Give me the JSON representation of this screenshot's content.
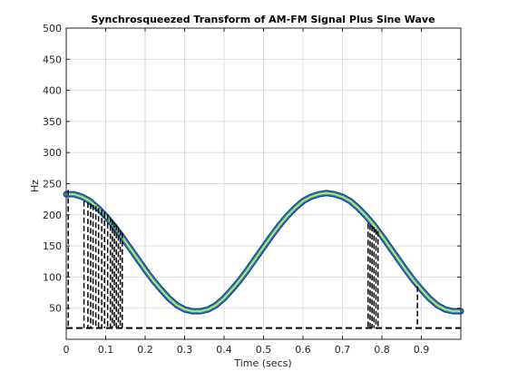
{
  "chart_data": {
    "type": "line",
    "title": "Synchrosqueezed Transform of AM-FM Signal Plus Sine Wave",
    "xlabel": "Time (secs)",
    "ylabel": "Hz",
    "xlim": [
      0,
      1
    ],
    "ylim": [
      0,
      500
    ],
    "x_ticks": [
      0,
      0.1,
      0.2,
      0.3,
      0.4,
      0.5,
      0.6,
      0.7,
      0.8,
      0.9
    ],
    "x_tick_labels": [
      "0",
      "0.1",
      "0.2",
      "0.3",
      "0.4",
      "0.5",
      "0.6",
      "0.7",
      "0.8",
      "0.9"
    ],
    "y_ticks": [
      50,
      100,
      150,
      200,
      250,
      300,
      350,
      400,
      450,
      500
    ],
    "y_tick_labels": [
      "50",
      "100",
      "150",
      "200",
      "250",
      "300",
      "350",
      "400",
      "450",
      "500"
    ],
    "grid": true,
    "series": [
      {
        "color": "#26a69a",
        "x": [
          0.0,
          0.02,
          0.04,
          0.06,
          0.08,
          0.1,
          0.12,
          0.14,
          0.16,
          0.18,
          0.2,
          0.22,
          0.24,
          0.26,
          0.28,
          0.3,
          0.32,
          0.34,
          0.36,
          0.38,
          0.4,
          0.42,
          0.44,
          0.46,
          0.48,
          0.5,
          0.52,
          0.54,
          0.56,
          0.58,
          0.6,
          0.62,
          0.64,
          0.66,
          0.68,
          0.7,
          0.72,
          0.74,
          0.76,
          0.78,
          0.8,
          0.82,
          0.84,
          0.86,
          0.88,
          0.9,
          0.92,
          0.94,
          0.96,
          0.98,
          1.0
        ],
        "y": [
          233,
          233,
          229,
          222,
          211,
          198,
          183,
          166,
          148,
          130,
          112,
          95,
          80,
          66,
          55,
          48,
          45,
          45,
          48,
          55,
          66,
          80,
          95,
          112,
          130,
          148,
          166,
          183,
          198,
          211,
          222,
          229,
          233,
          235,
          233,
          229,
          222,
          211,
          198,
          183,
          166,
          148,
          130,
          112,
          95,
          80,
          66,
          55,
          48,
          45,
          45
        ]
      },
      {
        "color": "#000000",
        "dashed": true,
        "x": [
          0.0,
          1.0
        ],
        "y": [
          18,
          18
        ]
      }
    ],
    "vertical_dashed_lines": [
      {
        "x": 0.005,
        "y_top": 240
      },
      {
        "x": 0.045,
        "y_top": 222
      },
      {
        "x": 0.055,
        "y_top": 220
      },
      {
        "x": 0.062,
        "y_top": 218
      },
      {
        "x": 0.068,
        "y_top": 216
      },
      {
        "x": 0.075,
        "y_top": 214
      },
      {
        "x": 0.082,
        "y_top": 211
      },
      {
        "x": 0.09,
        "y_top": 208
      },
      {
        "x": 0.097,
        "y_top": 204
      },
      {
        "x": 0.105,
        "y_top": 200
      },
      {
        "x": 0.112,
        "y_top": 196
      },
      {
        "x": 0.117,
        "y_top": 192
      },
      {
        "x": 0.122,
        "y_top": 188
      },
      {
        "x": 0.127,
        "y_top": 184
      },
      {
        "x": 0.132,
        "y_top": 180
      },
      {
        "x": 0.137,
        "y_top": 175
      },
      {
        "x": 0.142,
        "y_top": 171
      },
      {
        "x": 0.765,
        "y_top": 186
      },
      {
        "x": 0.77,
        "y_top": 184
      },
      {
        "x": 0.775,
        "y_top": 182
      },
      {
        "x": 0.78,
        "y_top": 180
      },
      {
        "x": 0.785,
        "y_top": 177
      },
      {
        "x": 0.79,
        "y_top": 174
      },
      {
        "x": 0.89,
        "y_top": 85
      }
    ]
  }
}
